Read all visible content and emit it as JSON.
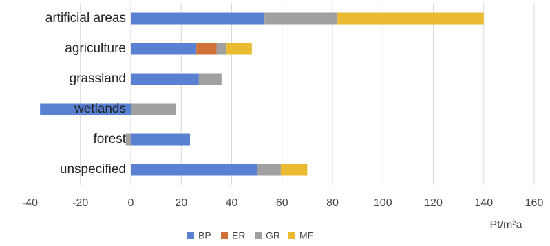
{
  "chart_data": {
    "type": "stacked_bar_horizontal",
    "categories": [
      "artificial areas",
      "agriculture",
      "grassland",
      "wetlands",
      "forest",
      "unspecified"
    ],
    "series": [
      {
        "name": "BP",
        "color": "#5a80d2",
        "values": [
          53,
          26,
          27,
          -36,
          23.5,
          50
        ]
      },
      {
        "name": "ER",
        "color": "#d2703a",
        "values": [
          null,
          8,
          null,
          null,
          null,
          null
        ]
      },
      {
        "name": "GR",
        "color": "#a0a0a0",
        "values": [
          29,
          4,
          9,
          18,
          -2,
          9.5
        ]
      },
      {
        "name": "MF",
        "color": "#eabb30",
        "values": [
          58,
          10,
          null,
          null,
          null,
          10.5
        ]
      }
    ],
    "xlim": [
      -40,
      160
    ],
    "xticks": [
      -40,
      -20,
      0,
      20,
      40,
      60,
      80,
      100,
      120,
      140,
      160
    ],
    "x_label": "Pt/m²a",
    "grid": true,
    "legend": "bottom"
  }
}
